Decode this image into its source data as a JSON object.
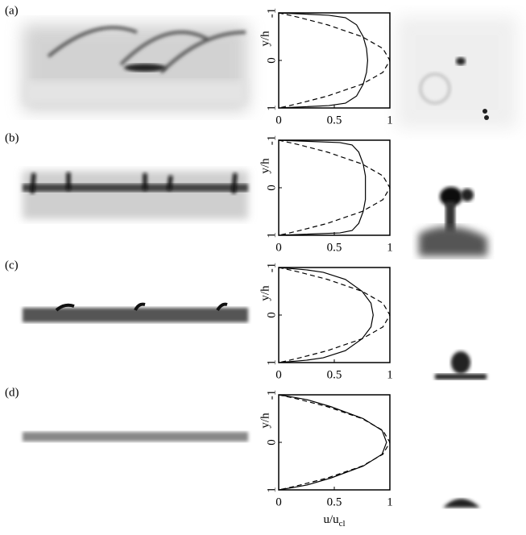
{
  "chart_data": [
    {
      "type": "line",
      "panel_label": "(a)",
      "ylabel": "y/h",
      "y_inverted": true,
      "xlim": [
        0,
        1
      ],
      "xticks": [
        0,
        0.5,
        1
      ],
      "ylim": [
        -1,
        1
      ],
      "yticks": [
        -1,
        0,
        1
      ],
      "y": [
        -1,
        -0.95,
        -0.9,
        -0.75,
        -0.5,
        -0.25,
        0,
        0.25,
        0.5,
        0.75,
        0.9,
        0.95,
        1
      ],
      "series": [
        {
          "style": "solid",
          "color": "#000000",
          "values": [
            0,
            0.45,
            0.6,
            0.7,
            0.76,
            0.79,
            0.8,
            0.79,
            0.76,
            0.7,
            0.6,
            0.45,
            0
          ]
        },
        {
          "style": "dashed",
          "color": "#000000",
          "values": [
            0,
            0.0975,
            0.19,
            0.4375,
            0.75,
            0.9375,
            1,
            0.9375,
            0.75,
            0.4375,
            0.19,
            0.0975,
            0
          ]
        }
      ]
    },
    {
      "type": "line",
      "panel_label": "(b)",
      "ylabel": "y/h",
      "y_inverted": true,
      "xlim": [
        0,
        1
      ],
      "xticks": [
        0,
        0.5,
        1
      ],
      "ylim": [
        -1,
        1
      ],
      "yticks": [
        -1,
        0,
        1
      ],
      "y": [
        -1,
        -0.95,
        -0.9,
        -0.75,
        -0.5,
        -0.25,
        0,
        0.25,
        0.5,
        0.75,
        0.9,
        0.95,
        1
      ],
      "series": [
        {
          "style": "solid",
          "color": "#000000",
          "values": [
            0,
            0.55,
            0.66,
            0.72,
            0.76,
            0.78,
            0.78,
            0.78,
            0.76,
            0.72,
            0.66,
            0.55,
            0
          ]
        },
        {
          "style": "dashed",
          "color": "#000000",
          "values": [
            0,
            0.0975,
            0.19,
            0.4375,
            0.75,
            0.9375,
            1,
            0.9375,
            0.75,
            0.4375,
            0.19,
            0.0975,
            0
          ]
        }
      ]
    },
    {
      "type": "line",
      "panel_label": "(c)",
      "ylabel": "y/h",
      "y_inverted": true,
      "xlim": [
        0,
        1
      ],
      "xticks": [
        0,
        0.5,
        1
      ],
      "ylim": [
        -1,
        1
      ],
      "yticks": [
        -1,
        0,
        1
      ],
      "y": [
        -1,
        -0.95,
        -0.9,
        -0.75,
        -0.5,
        -0.25,
        0,
        0.25,
        0.5,
        0.75,
        0.9,
        0.95,
        1
      ],
      "series": [
        {
          "style": "solid",
          "color": "#000000",
          "values": [
            0,
            0.25,
            0.4,
            0.6,
            0.75,
            0.83,
            0.85,
            0.83,
            0.75,
            0.6,
            0.4,
            0.25,
            0
          ]
        },
        {
          "style": "dashed",
          "color": "#000000",
          "values": [
            0,
            0.0975,
            0.19,
            0.4375,
            0.75,
            0.9375,
            1,
            0.9375,
            0.75,
            0.4375,
            0.19,
            0.0975,
            0
          ]
        }
      ]
    },
    {
      "type": "line",
      "panel_label": "(d)",
      "ylabel": "y/h",
      "xlabel": "u/u",
      "xlabel_sub": "cl",
      "y_inverted": true,
      "xlim": [
        0,
        1
      ],
      "xticks": [
        0,
        0.5,
        1
      ],
      "ylim": [
        -1,
        1
      ],
      "yticks": [
        -1,
        0,
        1
      ],
      "y": [
        -1,
        -0.95,
        -0.9,
        -0.75,
        -0.5,
        -0.25,
        0,
        0.25,
        0.5,
        0.75,
        0.9,
        0.95,
        1
      ],
      "series": [
        {
          "style": "solid",
          "color": "#000000",
          "values": [
            0,
            0.13,
            0.25,
            0.47,
            0.76,
            0.93,
            0.97,
            0.93,
            0.76,
            0.47,
            0.25,
            0.13,
            0
          ]
        },
        {
          "style": "dashed",
          "color": "#000000",
          "values": [
            0,
            0.0975,
            0.19,
            0.4375,
            0.75,
            0.9375,
            1,
            0.9375,
            0.75,
            0.4375,
            0.19,
            0.0975,
            0
          ]
        }
      ]
    }
  ]
}
